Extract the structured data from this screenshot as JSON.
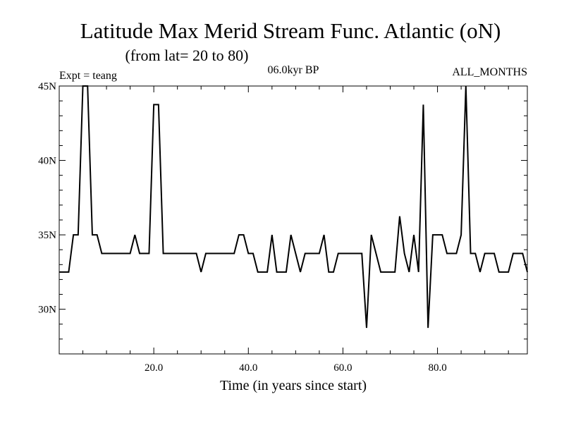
{
  "chart_data": {
    "type": "line",
    "title": "Latitude Max Merid Stream Func. Atlantic (oN)",
    "subtitle": "(from lat= 20 to 80)",
    "annotations": {
      "experiment": "Expt = teang",
      "period": "06.0kyr BP",
      "months": "ALL_MONTHS"
    },
    "xlabel": "Time (in years since start)",
    "ylabel": "",
    "xlim": [
      0,
      99
    ],
    "ylim": [
      27,
      45
    ],
    "x_ticks": [
      {
        "value": 20,
        "label": "20.0"
      },
      {
        "value": 40,
        "label": "40.0"
      },
      {
        "value": 60,
        "label": "60.0"
      },
      {
        "value": 80,
        "label": "80.0"
      }
    ],
    "y_ticks": [
      {
        "value": 30,
        "label": "30N"
      },
      {
        "value": 35,
        "label": "35N"
      },
      {
        "value": 40,
        "label": "40N"
      },
      {
        "value": 45,
        "label": "45N"
      }
    ],
    "grid": false,
    "line_color": "#000000",
    "series": [
      {
        "x": [
          0,
          1,
          2,
          3,
          4,
          5,
          6,
          7,
          8,
          9,
          10,
          11,
          12,
          13,
          14,
          15,
          16,
          17,
          18,
          19,
          20,
          21,
          22,
          23,
          24,
          25,
          26,
          27,
          28,
          29,
          30,
          31,
          32,
          33,
          34,
          35,
          36,
          37,
          38,
          39,
          40,
          41,
          42,
          43,
          44,
          45,
          46,
          47,
          48,
          49,
          50,
          51,
          52,
          53,
          54,
          55,
          56,
          57,
          58,
          59,
          60,
          61,
          62,
          63,
          64,
          65,
          66,
          67,
          68,
          69,
          70,
          71,
          72,
          73,
          74,
          75,
          76,
          77,
          78,
          79,
          80,
          81,
          82,
          83,
          84,
          85,
          86,
          87,
          88,
          89,
          90,
          91,
          92,
          93,
          94,
          95,
          96,
          97,
          98,
          99
        ],
        "values": [
          32.5,
          32.5,
          32.5,
          35.0,
          35.0,
          45.0,
          45.0,
          35.0,
          35.0,
          33.75,
          33.75,
          33.75,
          33.75,
          33.75,
          33.75,
          33.75,
          35.0,
          33.75,
          33.75,
          33.75,
          43.75,
          43.75,
          33.75,
          33.75,
          33.75,
          33.75,
          33.75,
          33.75,
          33.75,
          33.75,
          32.5,
          33.75,
          33.75,
          33.75,
          33.75,
          33.75,
          33.75,
          33.75,
          35.0,
          35.0,
          33.75,
          33.75,
          32.5,
          32.5,
          32.5,
          35.0,
          32.5,
          32.5,
          32.5,
          35.0,
          33.75,
          32.5,
          33.75,
          33.75,
          33.75,
          33.75,
          35.0,
          32.5,
          32.5,
          33.75,
          33.75,
          33.75,
          33.75,
          33.75,
          33.75,
          28.75,
          35.0,
          33.75,
          32.5,
          32.5,
          32.5,
          32.5,
          36.25,
          33.75,
          32.5,
          35.0,
          32.5,
          43.75,
          28.75,
          35.0,
          35.0,
          35.0,
          33.75,
          33.75,
          33.75,
          35.0,
          45.0,
          33.75,
          33.75,
          32.5,
          33.75,
          33.75,
          33.75,
          32.5,
          32.5,
          32.5,
          33.75,
          33.75,
          33.75,
          32.5
        ]
      }
    ]
  }
}
